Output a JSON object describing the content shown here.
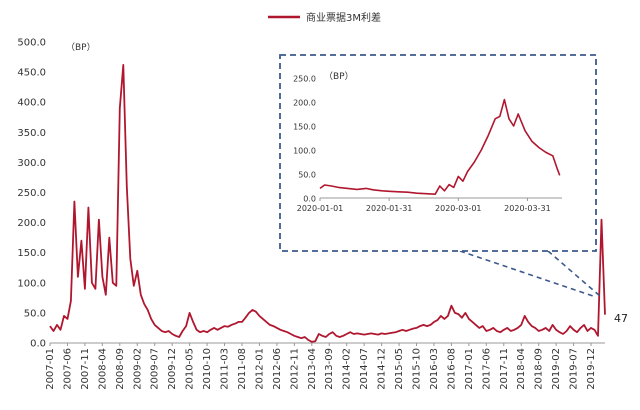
{
  "chart_data": {
    "type": "line",
    "series_name": "商业票据3M利差",
    "legend_placement": "top-center",
    "color": "#b0172f",
    "unit_label": "（BP）",
    "end_value_label": "47",
    "main": {
      "ylim": [
        0,
        500
      ],
      "y_ticks": [
        "0.0",
        "50.0",
        "100.0",
        "150.0",
        "200.0",
        "250.0",
        "300.0",
        "350.0",
        "400.0",
        "450.0",
        "500.0"
      ],
      "x_start": "2007-01",
      "x_end": "2020-04",
      "x_ticks": [
        "2007-01",
        "2007-06",
        "2007-11",
        "2008-04",
        "2008-09",
        "2009-02",
        "2009-07",
        "2009-12",
        "2010-05",
        "2010-10",
        "2011-03",
        "2011-08",
        "2012-01",
        "2012-06",
        "2012-11",
        "2013-04",
        "2013-09",
        "2014-02",
        "2014-07",
        "2014-12",
        "2015-05",
        "2015-10",
        "2016-03",
        "2016-08",
        "2017-01",
        "2017-06",
        "2017-11",
        "2018-04",
        "2018-09",
        "2019-02",
        "2019-07",
        "2019-12"
      ],
      "points": [
        [
          "2007-01",
          28
        ],
        [
          "2007-02",
          20
        ],
        [
          "2007-03",
          30
        ],
        [
          "2007-04",
          22
        ],
        [
          "2007-05",
          45
        ],
        [
          "2007-06",
          40
        ],
        [
          "2007-07",
          70
        ],
        [
          "2007-08",
          235
        ],
        [
          "2007-09",
          110
        ],
        [
          "2007-10",
          170
        ],
        [
          "2007-11",
          90
        ],
        [
          "2007-12",
          225
        ],
        [
          "2008-01",
          100
        ],
        [
          "2008-02",
          90
        ],
        [
          "2008-03",
          205
        ],
        [
          "2008-04",
          110
        ],
        [
          "2008-05",
          80
        ],
        [
          "2008-06",
          175
        ],
        [
          "2008-07",
          100
        ],
        [
          "2008-08",
          95
        ],
        [
          "2008-09",
          390
        ],
        [
          "2008-10",
          462
        ],
        [
          "2008-11",
          260
        ],
        [
          "2008-12",
          140
        ],
        [
          "2009-01",
          95
        ],
        [
          "2009-02",
          120
        ],
        [
          "2009-03",
          80
        ],
        [
          "2009-04",
          65
        ],
        [
          "2009-05",
          55
        ],
        [
          "2009-06",
          40
        ],
        [
          "2009-07",
          30
        ],
        [
          "2009-08",
          25
        ],
        [
          "2009-09",
          20
        ],
        [
          "2009-10",
          18
        ],
        [
          "2009-11",
          20
        ],
        [
          "2009-12",
          15
        ],
        [
          "2010-01",
          12
        ],
        [
          "2010-02",
          10
        ],
        [
          "2010-03",
          20
        ],
        [
          "2010-04",
          28
        ],
        [
          "2010-05",
          50
        ],
        [
          "2010-06",
          35
        ],
        [
          "2010-07",
          22
        ],
        [
          "2010-08",
          18
        ],
        [
          "2010-09",
          20
        ],
        [
          "2010-10",
          18
        ],
        [
          "2010-11",
          22
        ],
        [
          "2010-12",
          25
        ],
        [
          "2011-01",
          22
        ],
        [
          "2011-02",
          25
        ],
        [
          "2011-03",
          28
        ],
        [
          "2011-04",
          27
        ],
        [
          "2011-05",
          30
        ],
        [
          "2011-06",
          32
        ],
        [
          "2011-07",
          35
        ],
        [
          "2011-08",
          35
        ],
        [
          "2011-09",
          42
        ],
        [
          "2011-10",
          50
        ],
        [
          "2011-11",
          55
        ],
        [
          "2011-12",
          52
        ],
        [
          "2012-01",
          45
        ],
        [
          "2012-02",
          40
        ],
        [
          "2012-03",
          35
        ],
        [
          "2012-04",
          30
        ],
        [
          "2012-05",
          28
        ],
        [
          "2012-06",
          25
        ],
        [
          "2012-07",
          22
        ],
        [
          "2012-08",
          20
        ],
        [
          "2012-09",
          18
        ],
        [
          "2012-10",
          15
        ],
        [
          "2012-11",
          12
        ],
        [
          "2012-12",
          10
        ],
        [
          "2013-01",
          8
        ],
        [
          "2013-02",
          10
        ],
        [
          "2013-03",
          5
        ],
        [
          "2013-04",
          2
        ],
        [
          "2013-05",
          3
        ],
        [
          "2013-06",
          15
        ],
        [
          "2013-07",
          12
        ],
        [
          "2013-08",
          10
        ],
        [
          "2013-09",
          15
        ],
        [
          "2013-10",
          18
        ],
        [
          "2013-11",
          12
        ],
        [
          "2013-12",
          10
        ],
        [
          "2014-01",
          12
        ],
        [
          "2014-02",
          15
        ],
        [
          "2014-03",
          18
        ],
        [
          "2014-04",
          15
        ],
        [
          "2014-05",
          16
        ],
        [
          "2014-06",
          15
        ],
        [
          "2014-07",
          14
        ],
        [
          "2014-08",
          15
        ],
        [
          "2014-09",
          16
        ],
        [
          "2014-10",
          15
        ],
        [
          "2014-11",
          14
        ],
        [
          "2014-12",
          16
        ],
        [
          "2015-01",
          15
        ],
        [
          "2015-02",
          16
        ],
        [
          "2015-03",
          17
        ],
        [
          "2015-04",
          18
        ],
        [
          "2015-05",
          20
        ],
        [
          "2015-06",
          22
        ],
        [
          "2015-07",
          20
        ],
        [
          "2015-08",
          22
        ],
        [
          "2015-09",
          24
        ],
        [
          "2015-10",
          25
        ],
        [
          "2015-11",
          28
        ],
        [
          "2015-12",
          30
        ],
        [
          "2016-01",
          28
        ],
        [
          "2016-02",
          30
        ],
        [
          "2016-03",
          35
        ],
        [
          "2016-04",
          38
        ],
        [
          "2016-05",
          45
        ],
        [
          "2016-06",
          40
        ],
        [
          "2016-07",
          45
        ],
        [
          "2016-08",
          62
        ],
        [
          "2016-09",
          50
        ],
        [
          "2016-10",
          48
        ],
        [
          "2016-11",
          42
        ],
        [
          "2016-12",
          50
        ],
        [
          "2017-01",
          40
        ],
        [
          "2017-02",
          35
        ],
        [
          "2017-03",
          30
        ],
        [
          "2017-04",
          25
        ],
        [
          "2017-05",
          28
        ],
        [
          "2017-06",
          20
        ],
        [
          "2017-07",
          22
        ],
        [
          "2017-08",
          25
        ],
        [
          "2017-09",
          20
        ],
        [
          "2017-10",
          18
        ],
        [
          "2017-11",
          22
        ],
        [
          "2017-12",
          25
        ],
        [
          "2018-01",
          20
        ],
        [
          "2018-02",
          22
        ],
        [
          "2018-03",
          25
        ],
        [
          "2018-04",
          30
        ],
        [
          "2018-05",
          45
        ],
        [
          "2018-06",
          35
        ],
        [
          "2018-07",
          28
        ],
        [
          "2018-08",
          25
        ],
        [
          "2018-09",
          20
        ],
        [
          "2018-10",
          22
        ],
        [
          "2018-11",
          25
        ],
        [
          "2018-12",
          20
        ],
        [
          "2019-01",
          30
        ],
        [
          "2019-02",
          22
        ],
        [
          "2019-03",
          18
        ],
        [
          "2019-04",
          15
        ],
        [
          "2019-05",
          20
        ],
        [
          "2019-06",
          28
        ],
        [
          "2019-07",
          22
        ],
        [
          "2019-08",
          18
        ],
        [
          "2019-09",
          25
        ],
        [
          "2019-10",
          30
        ],
        [
          "2019-11",
          20
        ],
        [
          "2019-12",
          25
        ],
        [
          "2020-01",
          22
        ],
        [
          "2020-02",
          12
        ],
        [
          "2020-03",
          205
        ],
        [
          "2020-04",
          47
        ]
      ]
    },
    "inset": {
      "ylim": [
        0,
        250
      ],
      "y_ticks": [
        "0.0",
        "50.0",
        "100.0",
        "150.0",
        "200.0",
        "250.0"
      ],
      "x_start": "2020-01-01",
      "x_end": "2020-04-15",
      "x_ticks": [
        "2020-01-01",
        "2020-01-31",
        "2020-03-01",
        "2020-03-31"
      ],
      "points": [
        [
          "2020-01-01",
          20
        ],
        [
          "2020-01-03",
          27
        ],
        [
          "2020-01-06",
          25
        ],
        [
          "2020-01-09",
          22
        ],
        [
          "2020-01-13",
          20
        ],
        [
          "2020-01-17",
          18
        ],
        [
          "2020-01-21",
          20
        ],
        [
          "2020-01-24",
          17
        ],
        [
          "2020-01-28",
          15
        ],
        [
          "2020-01-31",
          14
        ],
        [
          "2020-02-04",
          13
        ],
        [
          "2020-02-08",
          12
        ],
        [
          "2020-02-12",
          10
        ],
        [
          "2020-02-16",
          9
        ],
        [
          "2020-02-20",
          8
        ],
        [
          "2020-02-22",
          25
        ],
        [
          "2020-02-24",
          15
        ],
        [
          "2020-02-26",
          28
        ],
        [
          "2020-02-28",
          22
        ],
        [
          "2020-03-01",
          45
        ],
        [
          "2020-03-03",
          35
        ],
        [
          "2020-03-05",
          55
        ],
        [
          "2020-03-08",
          75
        ],
        [
          "2020-03-11",
          100
        ],
        [
          "2020-03-14",
          130
        ],
        [
          "2020-03-17",
          165
        ],
        [
          "2020-03-19",
          170
        ],
        [
          "2020-03-21",
          205
        ],
        [
          "2020-03-23",
          165
        ],
        [
          "2020-03-25",
          150
        ],
        [
          "2020-03-27",
          175
        ],
        [
          "2020-03-30",
          140
        ],
        [
          "2020-04-02",
          118
        ],
        [
          "2020-04-05",
          105
        ],
        [
          "2020-04-08",
          95
        ],
        [
          "2020-04-11",
          88
        ],
        [
          "2020-04-13",
          60
        ],
        [
          "2020-04-14",
          47
        ]
      ]
    }
  }
}
